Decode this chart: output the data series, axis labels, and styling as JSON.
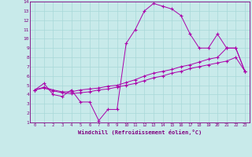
{
  "xlabel": "Windchill (Refroidissement éolien,°C)",
  "xlim": [
    -0.5,
    23.5
  ],
  "ylim": [
    1,
    14
  ],
  "xticks": [
    0,
    1,
    2,
    3,
    4,
    5,
    6,
    7,
    8,
    9,
    10,
    11,
    12,
    13,
    14,
    15,
    16,
    17,
    18,
    19,
    20,
    21,
    22,
    23
  ],
  "yticks": [
    1,
    2,
    3,
    4,
    5,
    6,
    7,
    8,
    9,
    10,
    11,
    12,
    13,
    14
  ],
  "bg_color": "#c8eaea",
  "line_color": "#aa00aa",
  "grid_color": "#a8d8d8",
  "line1_x": [
    0,
    1,
    2,
    3,
    4,
    5,
    6,
    7,
    8,
    9,
    10,
    11,
    12,
    13,
    14,
    15,
    16,
    17,
    18,
    19,
    20,
    21,
    22,
    23
  ],
  "line1_y": [
    4.5,
    5.2,
    4.0,
    3.8,
    4.5,
    3.2,
    3.2,
    1.2,
    2.4,
    2.4,
    9.5,
    11.0,
    13.0,
    13.8,
    13.5,
    13.2,
    12.5,
    10.5,
    9.0,
    9.0,
    10.5,
    9.0,
    9.0,
    6.5
  ],
  "line2_x": [
    0,
    1,
    2,
    3,
    4,
    5,
    6,
    7,
    8,
    9,
    10,
    11,
    12,
    13,
    14,
    15,
    16,
    17,
    18,
    19,
    20,
    21,
    22,
    23
  ],
  "line2_y": [
    4.5,
    4.8,
    4.5,
    4.3,
    4.3,
    4.5,
    4.6,
    4.7,
    4.9,
    5.0,
    5.3,
    5.6,
    6.0,
    6.3,
    6.5,
    6.7,
    7.0,
    7.2,
    7.5,
    7.8,
    8.0,
    9.0,
    9.0,
    6.5
  ],
  "line3_x": [
    0,
    1,
    2,
    3,
    4,
    5,
    6,
    7,
    8,
    9,
    10,
    11,
    12,
    13,
    14,
    15,
    16,
    17,
    18,
    19,
    20,
    21,
    22,
    23
  ],
  "line3_y": [
    4.5,
    4.7,
    4.4,
    4.2,
    4.1,
    4.2,
    4.3,
    4.5,
    4.6,
    4.8,
    5.0,
    5.2,
    5.5,
    5.8,
    6.0,
    6.3,
    6.5,
    6.8,
    7.0,
    7.2,
    7.4,
    7.6,
    8.0,
    6.5
  ]
}
